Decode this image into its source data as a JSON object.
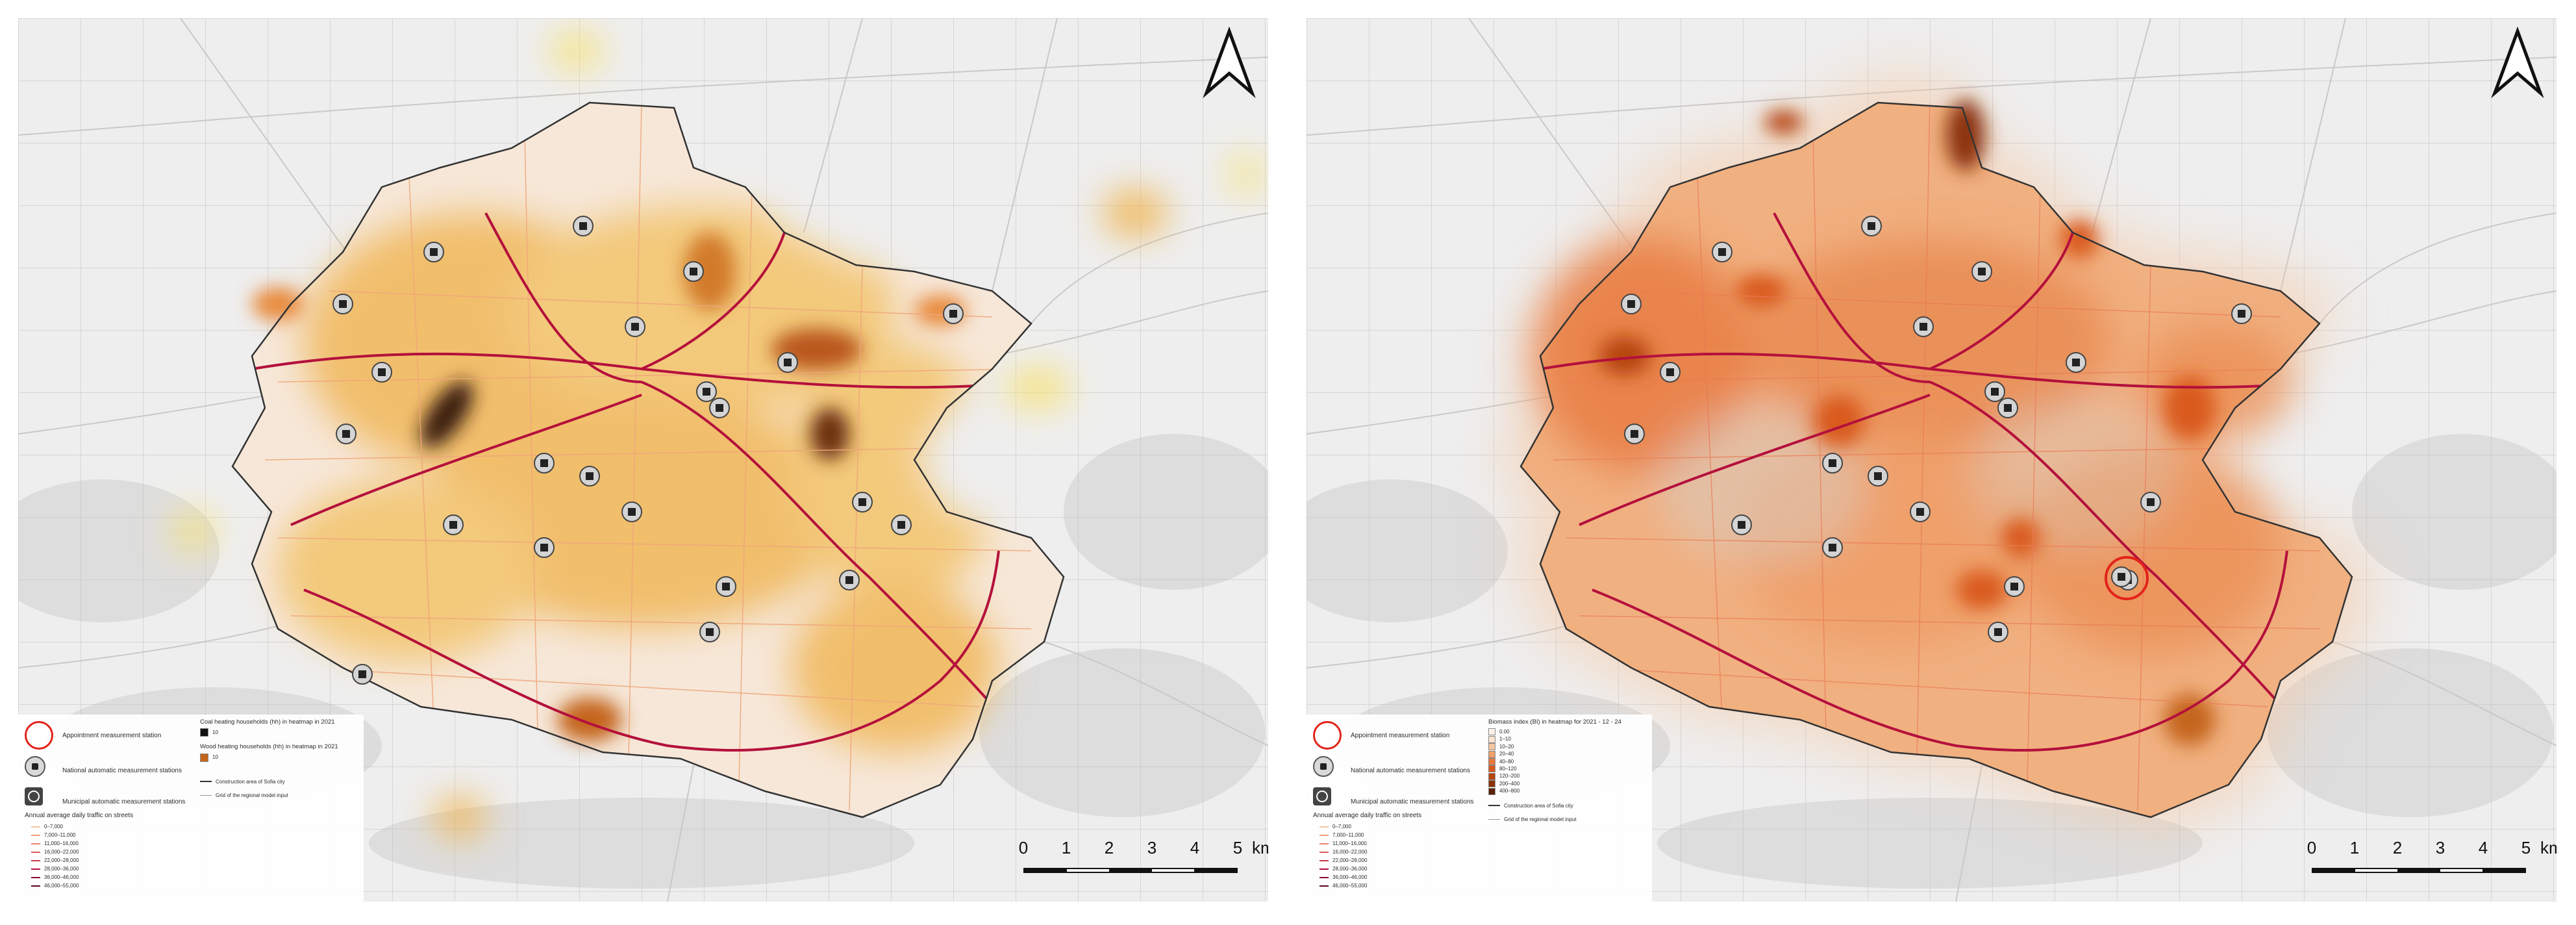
{
  "panels": [
    {
      "id": "left",
      "legend": {
        "appointment_station": "Appointment measurement station",
        "national_stations": "National automatic measurement stations",
        "municipal_stations": "Municipal automatic measurement stations",
        "traffic_title": "Annual average daily traffic on streets",
        "traffic_classes": [
          "0–7,000",
          "7,000–11,000",
          "11,000–16,000",
          "16,000–22,000",
          "22,000–28,000",
          "28,000–36,000",
          "36,000–46,000",
          "46,000–55,000"
        ],
        "heat_title_1": "Coal heating households (hh) in heatmap in 2021",
        "heat_class_1": "10",
        "heat_title_2": "Wood heating households (hh) in heatmap in 2021",
        "heat_class_2": "10",
        "construction_area": "Construction area of Sofia city",
        "grid": "Grid of the regional model input"
      },
      "heat_colors": [
        "#f7e27a",
        "#f0b85a",
        "#e8893a",
        "#c45a1c",
        "#5a2a10"
      ]
    },
    {
      "id": "right",
      "legend": {
        "appointment_station": "Appointment measurement station",
        "national_stations": "National automatic measurement stations",
        "municipal_stations": "Municipal automatic measurement stations",
        "traffic_title": "Annual average daily traffic on streets",
        "traffic_classes": [
          "0–7,000",
          "7,000–11,000",
          "11,000–16,000",
          "16,000–22,000",
          "22,000–28,000",
          "28,000–36,000",
          "36,000–46,000",
          "46,000–55,000"
        ],
        "heat_title": "Biomass index (BI) in heatmap for 2021 - 12 - 24",
        "heat_classes": [
          "0.00",
          "1–10",
          "10–20",
          "20–40",
          "40–80",
          "80–120",
          "120–200",
          "200–400",
          "400–800"
        ],
        "construction_area": "Construction area of Sofia city",
        "grid": "Grid of the regional model input"
      },
      "heat_colors": [
        "#fbe3cf",
        "#f6c6a0",
        "#f0a06a",
        "#e7793f",
        "#d95a1e",
        "#b64510",
        "#8a3308"
      ]
    }
  ],
  "scale": {
    "ticks": [
      "0",
      "1",
      "2",
      "3",
      "4",
      "5"
    ],
    "unit": "km"
  },
  "colors": {
    "roads_major": "#b4103c",
    "roads_minor": "#f0a67a",
    "boundary": "#333333",
    "ring": "#e2231a",
    "background": "#f1f1f1"
  },
  "icons": {
    "north_arrow": "north-arrow-icon",
    "national_station": "national-station-icon",
    "municipal_station": "municipal-station-icon"
  }
}
